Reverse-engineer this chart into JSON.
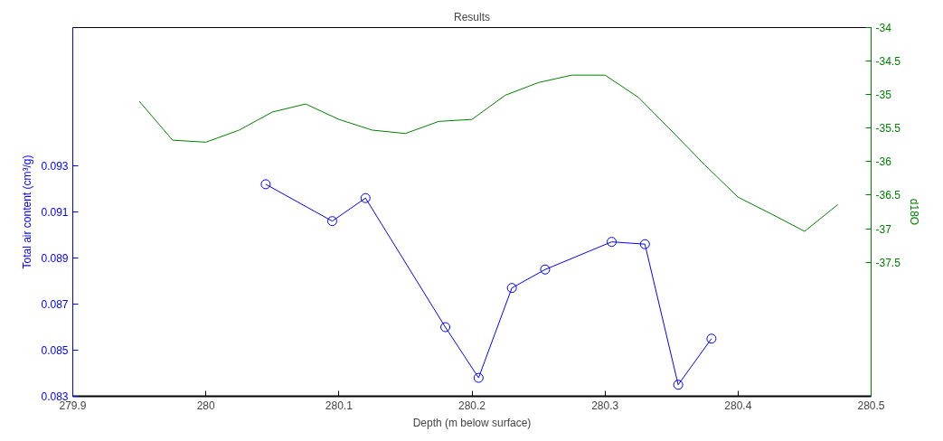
{
  "chart_data": {
    "type": "line",
    "title": "Results",
    "xlabel": "Depth (m below surface)",
    "ylabel": "Total air content (cm³/g)",
    "y2label": "d18O",
    "xlim": [
      279.9,
      280.5
    ],
    "xticks": [
      279.9,
      280,
      280.1,
      280.2,
      280.3,
      280.4,
      280.5
    ],
    "ylim": [
      0.083,
      0.099
    ],
    "yticks": [
      0.083,
      0.085,
      0.087,
      0.089,
      0.091,
      0.093
    ],
    "y2lim": [
      -39.5,
      -34
    ],
    "y2ticks": [
      -34,
      -34.5,
      -35,
      -35.5,
      -36,
      -36.5,
      -37,
      -37.5
    ],
    "grid": false,
    "series": [
      {
        "color": "#0000ff",
        "marker": "circle",
        "x": [
          280.045,
          280.095,
          280.12,
          280.18,
          280.205,
          280.23,
          280.255,
          280.305,
          280.33,
          280.355,
          280.38
        ],
        "values": [
          0.0922,
          0.0906,
          0.0916,
          0.086,
          0.0838,
          0.0877,
          0.0885,
          0.0897,
          0.0896,
          0.0835,
          0.0855
        ]
      },
      {
        "color": "#008000",
        "marker": "none",
        "axis": "y2",
        "x": [
          279.95,
          279.975,
          280.0,
          280.025,
          280.05,
          280.075,
          280.1,
          280.125,
          280.15,
          280.175,
          280.2,
          280.225,
          280.25,
          280.275,
          280.3,
          280.325,
          280.35,
          280.375,
          280.4,
          280.425,
          280.45,
          280.475
        ],
        "values": [
          -35.1,
          -35.68,
          -35.71,
          -35.53,
          -35.26,
          -35.14,
          -35.37,
          -35.53,
          -35.58,
          -35.4,
          -35.37,
          -35.01,
          -34.82,
          -34.71,
          -34.71,
          -35.04,
          -35.54,
          -36.05,
          -36.53,
          -36.78,
          -37.04,
          -36.64
        ]
      }
    ]
  }
}
